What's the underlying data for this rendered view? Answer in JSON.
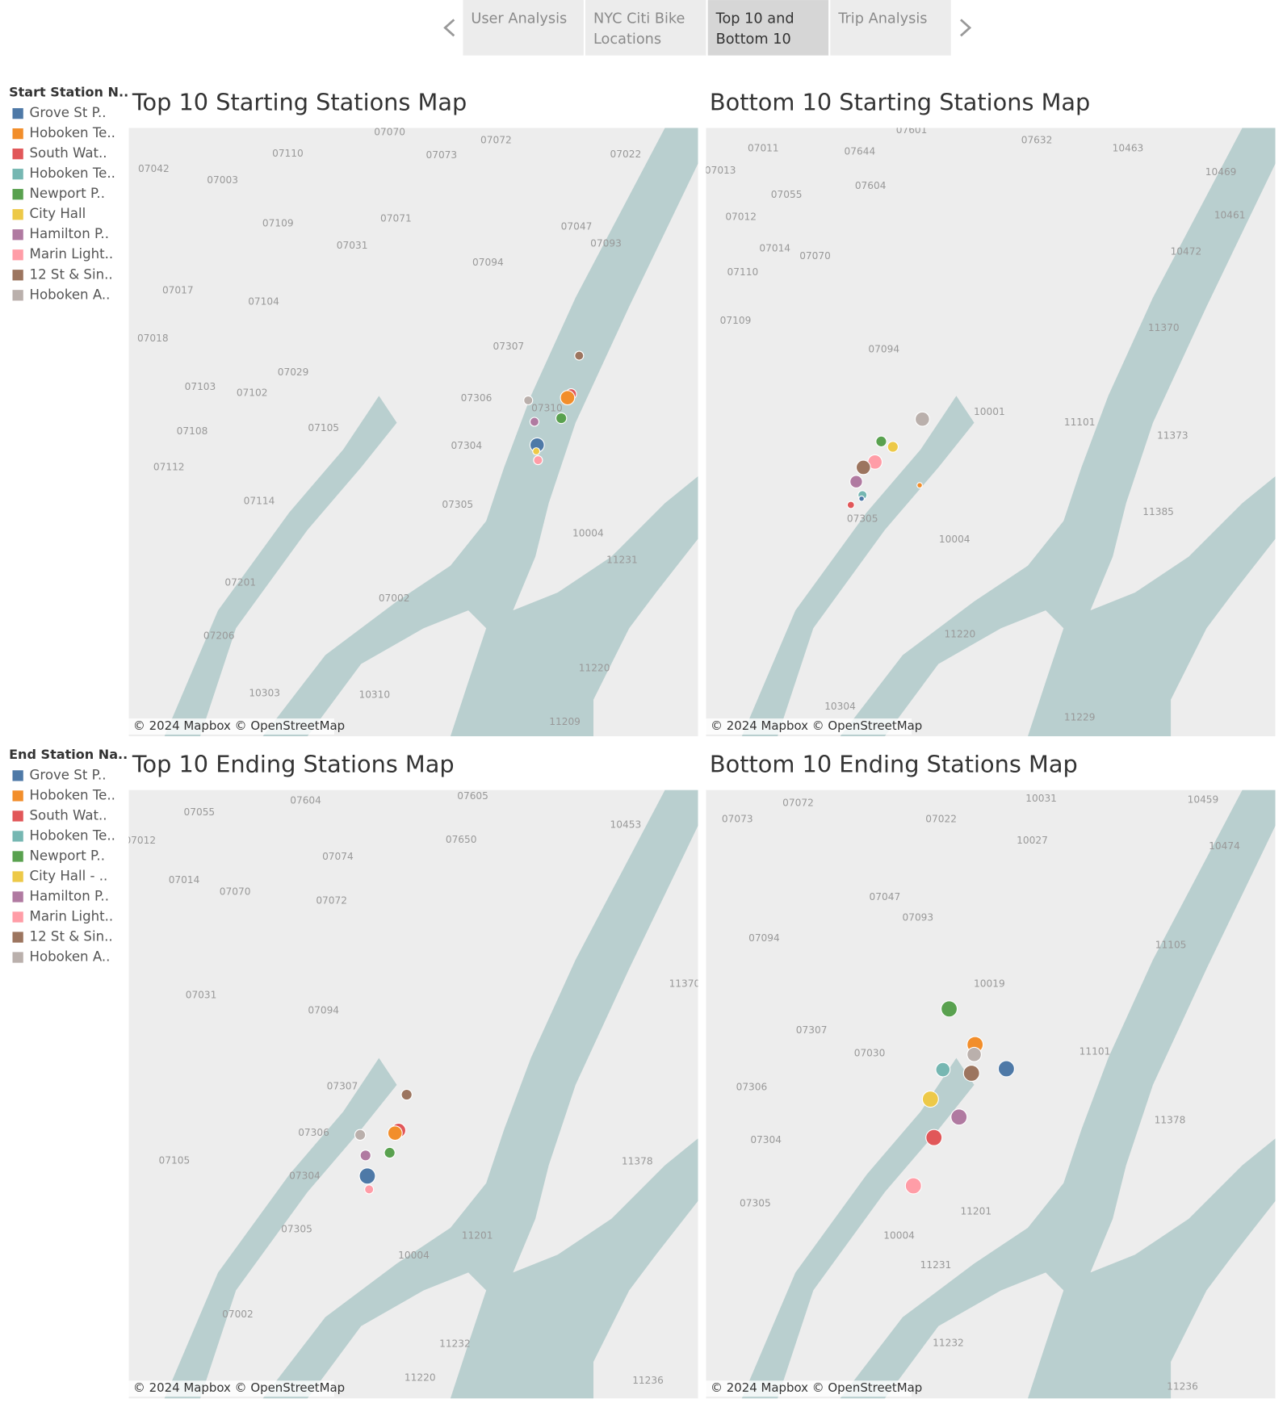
{
  "tabs": [
    {
      "lines": [
        "User Analysis"
      ]
    },
    {
      "lines": [
        "NYC Citi Bike",
        "Locations"
      ]
    },
    {
      "lines": [
        "Top 10 and",
        "Bottom 10"
      ],
      "selected": true
    },
    {
      "lines": [
        "Trip Analysis"
      ]
    }
  ],
  "legends": [
    {
      "title": "Start Station N..",
      "items": [
        {
          "label": "Grove St P..",
          "color": "#4e79a7"
        },
        {
          "label": "Hoboken Te..",
          "color": "#f28e2b"
        },
        {
          "label": "South Wat..",
          "color": "#e15759"
        },
        {
          "label": "Hoboken Te..",
          "color": "#76b7b2"
        },
        {
          "label": "Newport P..",
          "color": "#59a14f"
        },
        {
          "label": "City Hall",
          "color": "#edc948"
        },
        {
          "label": "Hamilton P..",
          "color": "#b07aa1"
        },
        {
          "label": "Marin Light..",
          "color": "#ff9da7"
        },
        {
          "label": "12 St & Sin..",
          "color": "#9c755f"
        },
        {
          "label": "Hoboken A..",
          "color": "#bab0ac"
        }
      ]
    },
    {
      "title": "End Station Na..",
      "items": [
        {
          "label": "Grove St P..",
          "color": "#4e79a7"
        },
        {
          "label": "Hoboken Te..",
          "color": "#f28e2b"
        },
        {
          "label": "South Wat..",
          "color": "#e15759"
        },
        {
          "label": "Hoboken Te..",
          "color": "#76b7b2"
        },
        {
          "label": "Newport P..",
          "color": "#59a14f"
        },
        {
          "label": "City Hall - ..",
          "color": "#edc948"
        },
        {
          "label": "Hamilton P..",
          "color": "#b07aa1"
        },
        {
          "label": "Marin Light..",
          "color": "#ff9da7"
        },
        {
          "label": "12 St & Sin..",
          "color": "#9c755f"
        },
        {
          "label": "Hoboken A..",
          "color": "#bab0ac"
        }
      ]
    }
  ],
  "maps": [
    {
      "title": "Top 10 Starting Stations Map",
      "attribution": "© 2024 Mapbox © OpenStreetMap",
      "zip_labels": [
        "07070",
        "07072",
        "07110",
        "07073",
        "07022",
        "07042",
        "07003",
        "07109",
        "07071",
        "07047",
        "07093",
        "07031",
        "07094",
        "07017",
        "07104",
        "07018",
        "07307",
        "07029",
        "07103",
        "07102",
        "07306",
        "07310",
        "07108",
        "07105",
        "07304",
        "07112",
        "07114",
        "07305",
        "07201",
        "07002",
        "07206",
        "10303",
        "10310",
        "11209",
        "10004",
        "11231",
        "11220"
      ]
    },
    {
      "title": "Bottom 10 Starting Stations Map",
      "attribution": "© 2024 Mapbox © OpenStreetMap",
      "zip_labels": [
        "07601",
        "07632",
        "10463",
        "07011",
        "07644",
        "07013",
        "10469",
        "07055",
        "07604",
        "07012",
        "10461",
        "07014",
        "07070",
        "10472",
        "07110",
        "07109",
        "11370",
        "07094",
        "10001",
        "11101",
        "11373",
        "07305",
        "11385",
        "10004",
        "11220",
        "10304",
        "11229"
      ]
    },
    {
      "title": "Top 10 Ending Stations Map",
      "attribution": "© 2024 Mapbox © OpenStreetMap",
      "zip_labels": [
        "07055",
        "07605",
        "07604",
        "10453",
        "07650",
        "07012",
        "07074",
        "07014",
        "07070",
        "07072",
        "11370",
        "07031",
        "07094",
        "07307",
        "07306",
        "07105",
        "07304",
        "11378",
        "07305",
        "10004",
        "11201",
        "07002",
        "11232",
        "11220",
        "11236"
      ]
    },
    {
      "title": "Bottom 10 Ending Stations Map",
      "attribution": "© 2024 Mapbox © OpenStreetMap",
      "zip_labels": [
        "07072",
        "10031",
        "10459",
        "07073",
        "07022",
        "10027",
        "10474",
        "07047",
        "07093",
        "07094",
        "11105",
        "10019",
        "11101",
        "07307",
        "07030",
        "07306",
        "07304",
        "11378",
        "07305",
        "10004",
        "11201",
        "11231",
        "11232",
        "11236"
      ]
    }
  ]
}
